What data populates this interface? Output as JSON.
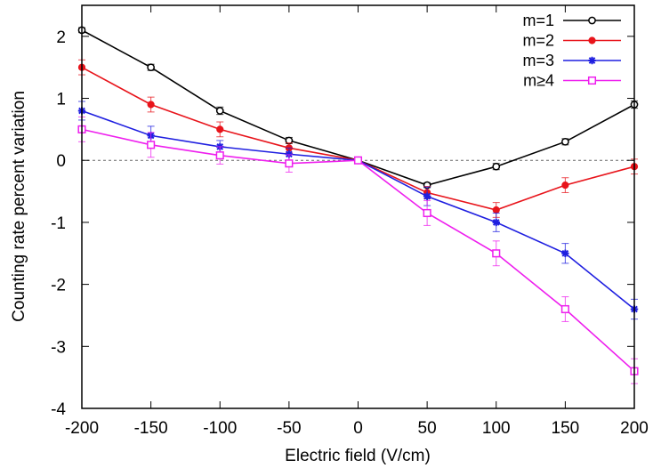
{
  "chart_data": {
    "type": "line",
    "xlabel": "Electric field (V/cm)",
    "ylabel": "Counting rate percent variation",
    "xlim": [
      -200,
      200
    ],
    "ylim": [
      -4,
      2.5
    ],
    "x_ticks": [
      -200,
      -150,
      -100,
      -50,
      0,
      50,
      100,
      150,
      200
    ],
    "y_ticks": [
      -4,
      -3,
      -2,
      -1,
      0,
      1,
      2
    ],
    "x_tick_labels": [
      "-200",
      "-150",
      "-100",
      "-50",
      "0",
      "50",
      "100",
      "150",
      "200"
    ],
    "y_tick_labels": [
      "-4",
      "-3",
      "-2",
      "-1",
      "0",
      "1",
      "2"
    ],
    "reference_line_y": 0,
    "legend_position": "top-right",
    "x": [
      -200,
      -150,
      -100,
      -50,
      0,
      50,
      100,
      150,
      200
    ],
    "series": [
      {
        "name": "m=1",
        "color": "#000000",
        "marker": "open-circle",
        "values": [
          2.1,
          1.5,
          0.8,
          0.32,
          0,
          -0.4,
          -0.1,
          0.3,
          0.9
        ],
        "errors": [
          0.04,
          0.05,
          0.06,
          0.05,
          0,
          0.04,
          0.05,
          0.05,
          0.06
        ]
      },
      {
        "name": "m=2",
        "color": "#e8141b",
        "marker": "filled-circle",
        "values": [
          1.5,
          0.9,
          0.5,
          0.2,
          0,
          -0.52,
          -0.8,
          -0.4,
          -0.1
        ],
        "errors": [
          0.12,
          0.12,
          0.12,
          0.08,
          0,
          0.1,
          0.12,
          0.12,
          0.12
        ]
      },
      {
        "name": "m=3",
        "color": "#1f1fe0",
        "marker": "star",
        "values": [
          0.8,
          0.4,
          0.22,
          0.1,
          0,
          -0.58,
          -1.0,
          -1.5,
          -2.4
        ],
        "errors": [
          0.15,
          0.15,
          0.1,
          0.1,
          0,
          0.15,
          0.15,
          0.16,
          0.16
        ]
      },
      {
        "name": "m≥4",
        "color": "#ee1fee",
        "marker": "open-square",
        "values": [
          0.5,
          0.25,
          0.08,
          -0.05,
          0,
          -0.85,
          -1.5,
          -2.4,
          -3.4
        ],
        "errors": [
          0.2,
          0.2,
          0.14,
          0.14,
          0,
          0.2,
          0.2,
          0.2,
          0.2
        ]
      }
    ]
  }
}
